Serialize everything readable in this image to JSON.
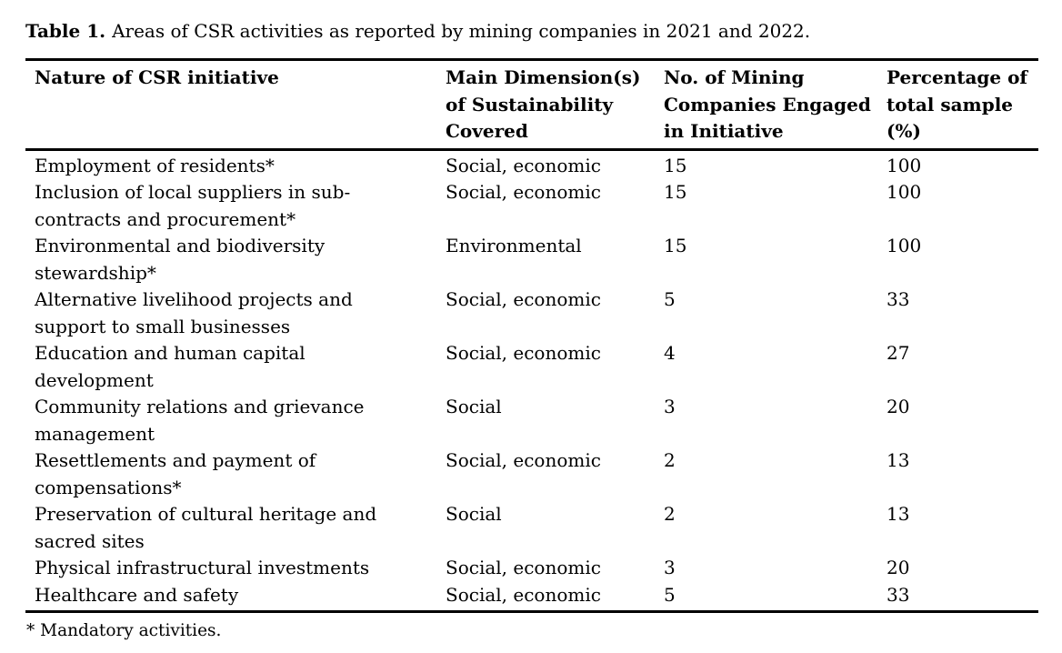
{
  "caption": {
    "label": "Table 1.",
    "text": "Areas of CSR activities as reported by mining companies in 2021 and 2022."
  },
  "table": {
    "columns": [
      "Nature of CSR initiative",
      "Main Dimension(s)\nof Sustainability\nCovered",
      "No. of Mining\nCompanies Engaged\nin Initiative",
      "Percentage of\ntotal sample\n(%)"
    ],
    "rows": [
      {
        "initiative": "Employment of residents*",
        "dimension": "Social, economic",
        "companies": "15",
        "percentage": "100"
      },
      {
        "initiative": "Inclusion of local suppliers in sub-\ncontracts and procurement*",
        "dimension": "Social, economic",
        "companies": "15",
        "percentage": "100"
      },
      {
        "initiative": "Environmental and biodiversity\nstewardship*",
        "dimension": "Environmental",
        "companies": "15",
        "percentage": "100"
      },
      {
        "initiative": "Alternative livelihood projects and\nsupport to small businesses",
        "dimension": "Social, economic",
        "companies": "5",
        "percentage": "33"
      },
      {
        "initiative": "Education and human capital\ndevelopment",
        "dimension": "Social, economic",
        "companies": "4",
        "percentage": "27"
      },
      {
        "initiative": "Community relations and grievance\nmanagement",
        "dimension": "Social",
        "companies": "3",
        "percentage": "20"
      },
      {
        "initiative": "Resettlements and payment of\ncompensations*",
        "dimension": "Social, economic",
        "companies": "2",
        "percentage": "13"
      },
      {
        "initiative": "Preservation of cultural heritage and\nsacred sites",
        "dimension": "Social",
        "companies": "2",
        "percentage": "13"
      },
      {
        "initiative": "Physical infrastructural investments",
        "dimension": "Social, economic",
        "companies": "3",
        "percentage": "20"
      },
      {
        "initiative": "Healthcare and safety",
        "dimension": "Social, economic",
        "companies": "5",
        "percentage": "33"
      }
    ]
  },
  "footnote": "* Mandatory activities."
}
